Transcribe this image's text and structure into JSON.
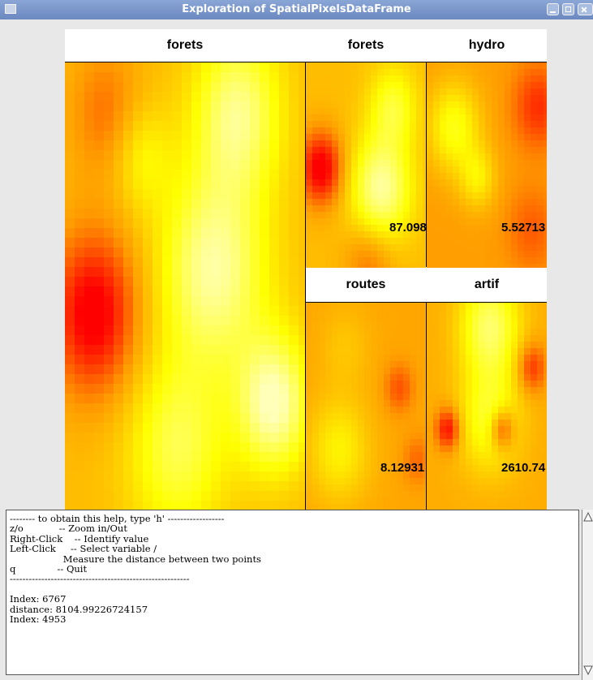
{
  "window": {
    "title": "Exploration of SpatialPixelsDataFrame"
  },
  "panels": {
    "main": {
      "title": "forets"
    },
    "p1": {
      "title": "forets",
      "value": "87.0987"
    },
    "p2": {
      "title": "hydro",
      "value": "5.52713"
    },
    "p3": {
      "title": "routes",
      "value": "8.12931"
    },
    "p4": {
      "title": "artif",
      "value": "2610.74"
    }
  },
  "colors": {
    "low": "#ff0000",
    "mid": "#ff9900",
    "high": "#ffff00",
    "max": "#ffffbb"
  },
  "console": {
    "lines": [
      "-------- to obtain this help, type 'h' ------------------",
      "z/o            -- Zoom in/Out",
      "Right-Click    -- Identify value",
      "Left-Click     -- Select variable /",
      "                  Measure the distance between two points",
      "q              -- Quit",
      "---------------------------------------------------------",
      "",
      "Index: 6767",
      "distance: 8104.99226724157",
      "Index: 4953"
    ]
  }
}
